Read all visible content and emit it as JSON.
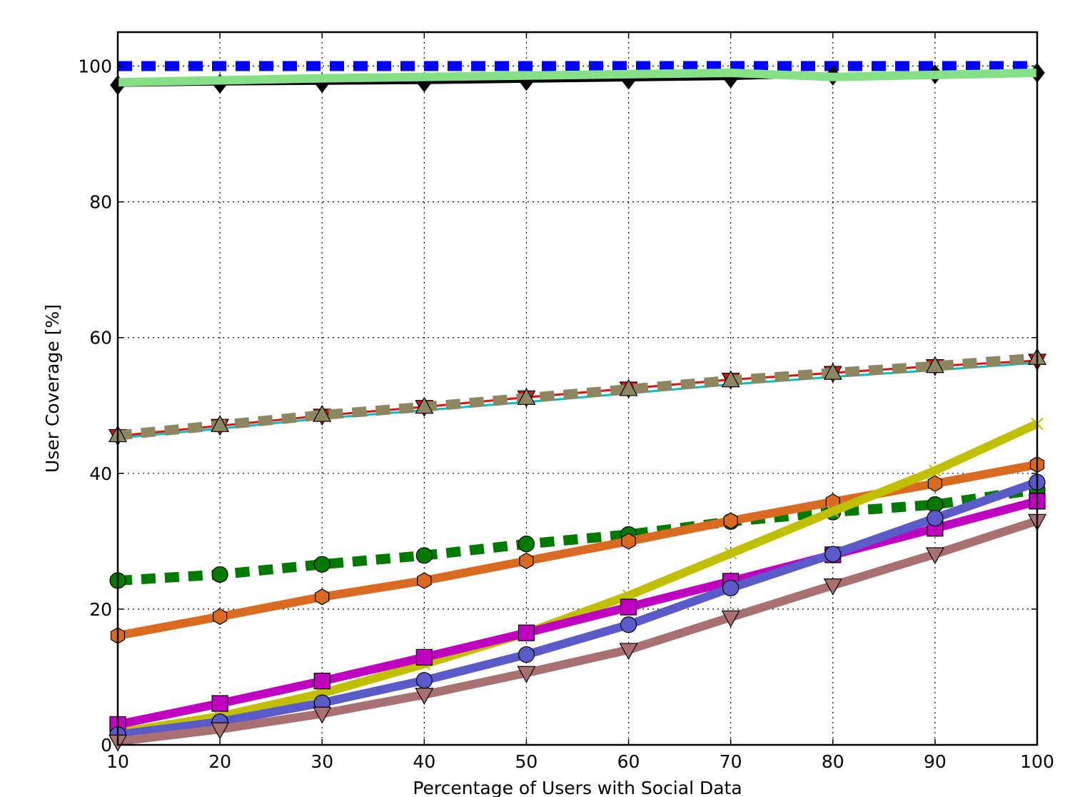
{
  "chart_data": {
    "type": "line",
    "xlabel": "Percentage of Users with Social Data",
    "ylabel": "User Coverage [%]",
    "xlim": [
      10,
      100
    ],
    "ylim": [
      0,
      105
    ],
    "xticks": [
      10,
      20,
      30,
      40,
      50,
      60,
      70,
      80,
      90,
      100
    ],
    "yticks": [
      0,
      20,
      40,
      60,
      80,
      100
    ],
    "grid": true,
    "x": [
      10,
      20,
      30,
      40,
      50,
      60,
      70,
      80,
      90,
      100
    ],
    "series": [
      {
        "color": "#0000ff",
        "dash": "dashed",
        "marker": "none",
        "values": [
          100,
          100,
          100,
          100,
          100,
          100,
          100,
          100,
          100,
          100
        ]
      },
      {
        "color": "#000000",
        "dash": "solid",
        "marker": "diamond",
        "values": [
          97.2,
          97.4,
          97.5,
          97.6,
          97.8,
          98.0,
          98.2,
          98.6,
          98.8,
          99.0
        ]
      },
      {
        "color": "#86e086",
        "dash": "solid",
        "marker": "none",
        "values": [
          97.6,
          97.9,
          98.2,
          98.4,
          98.6,
          98.8,
          99.0,
          98.4,
          98.7,
          99.0
        ]
      },
      {
        "color": "#00bfbf",
        "dash": "solid",
        "marker": "none",
        "values": [
          45.2,
          46.6,
          48.1,
          49.3,
          50.5,
          51.8,
          53.1,
          54.2,
          55.2,
          56.3
        ]
      },
      {
        "color": "#e01010",
        "dash": "solid",
        "marker": "triangle-down",
        "values": [
          45.5,
          47.0,
          48.5,
          49.8,
          51.2,
          52.5,
          53.8,
          54.8,
          55.8,
          56.6
        ]
      },
      {
        "color": "#8c8760",
        "dash": "dashed",
        "marker": "triangle-up",
        "values": [
          45.6,
          47.1,
          48.6,
          49.8,
          51.1,
          52.4,
          53.7,
          54.8,
          55.8,
          57.0
        ]
      },
      {
        "color": "#007a00",
        "dash": "dashed",
        "marker": "circle",
        "values": [
          24.2,
          25.1,
          26.6,
          27.9,
          29.6,
          31.0,
          32.9,
          34.3,
          35.4,
          37.6
        ]
      },
      {
        "color": "#d86a22",
        "dash": "solid",
        "marker": "hexagon",
        "values": [
          16.1,
          18.9,
          21.8,
          24.2,
          27.1,
          30.0,
          33.0,
          35.8,
          38.5,
          41.3
        ]
      },
      {
        "color": "#c0c000",
        "dash": "solid",
        "marker": "x",
        "values": [
          1.8,
          4.2,
          7.6,
          11.9,
          16.5,
          22.0,
          28.2,
          34.4,
          40.4,
          47.3
        ]
      },
      {
        "color": "#c000c0",
        "dash": "solid",
        "marker": "square",
        "values": [
          3.0,
          6.1,
          9.4,
          12.9,
          16.5,
          20.3,
          24.1,
          28.0,
          31.9,
          35.9
        ]
      },
      {
        "color": "#5a5ac8",
        "dash": "solid",
        "marker": "circle",
        "values": [
          1.5,
          3.4,
          6.2,
          9.5,
          13.3,
          17.7,
          23.1,
          28.1,
          33.4,
          38.7
        ]
      },
      {
        "color": "#a87070",
        "dash": "solid",
        "marker": "triangle-down",
        "values": [
          0.5,
          2.3,
          4.6,
          7.4,
          10.6,
          14.0,
          18.8,
          23.5,
          28.1,
          33.0
        ]
      }
    ]
  }
}
